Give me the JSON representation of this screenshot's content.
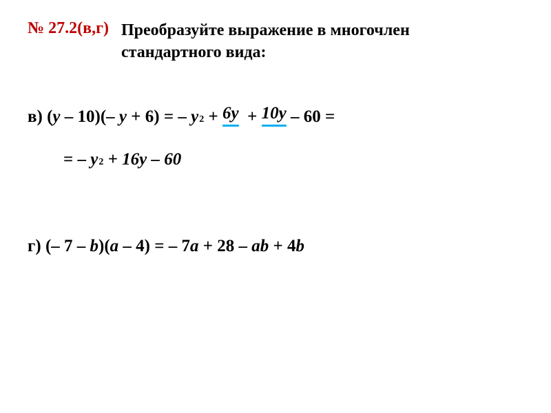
{
  "header": {
    "problem_number": "№ 27.2(в,г)",
    "instruction_line1": "Преобразуйте выражение в многочлен",
    "instruction_line2": "стандартного вида:",
    "number_color": "#c00000",
    "instruction_color": "#000000",
    "fontsize": 24
  },
  "problem_v": {
    "label": "в) ",
    "lhs_open": "(",
    "lhs_var1": "y",
    "lhs_op1": " – 10)(– ",
    "lhs_var2": "y",
    "lhs_op2": " + 6) = – ",
    "rhs_term1_var": "y",
    "rhs_term1_exp": "2",
    "rhs_plus1": " + ",
    "rhs_term2": "6y",
    "rhs_plus2": "  + ",
    "rhs_term3": "10y",
    "rhs_tail": " – 60 =",
    "line2_eq": "= – ",
    "line2_var": "y",
    "line2_exp": "2",
    "line2_rest": " + 16y – 60",
    "underline_color1": "#00b0f0",
    "underline_color2": "#00b0f0"
  },
  "problem_g": {
    "label": "г) ",
    "expr_pre": "(– 7 – ",
    "var_b1": "b",
    "expr_mid1": ")(",
    "var_a1": "a",
    "expr_mid2": " – 4) = – 7",
    "var_a2": "a",
    "expr_mid3": " + 28 – ",
    "var_ab": "ab",
    "expr_mid4": " + 4",
    "var_b2": "b"
  },
  "style": {
    "text_color": "#000000",
    "math_fontsize": 25,
    "background": "#ffffff"
  }
}
